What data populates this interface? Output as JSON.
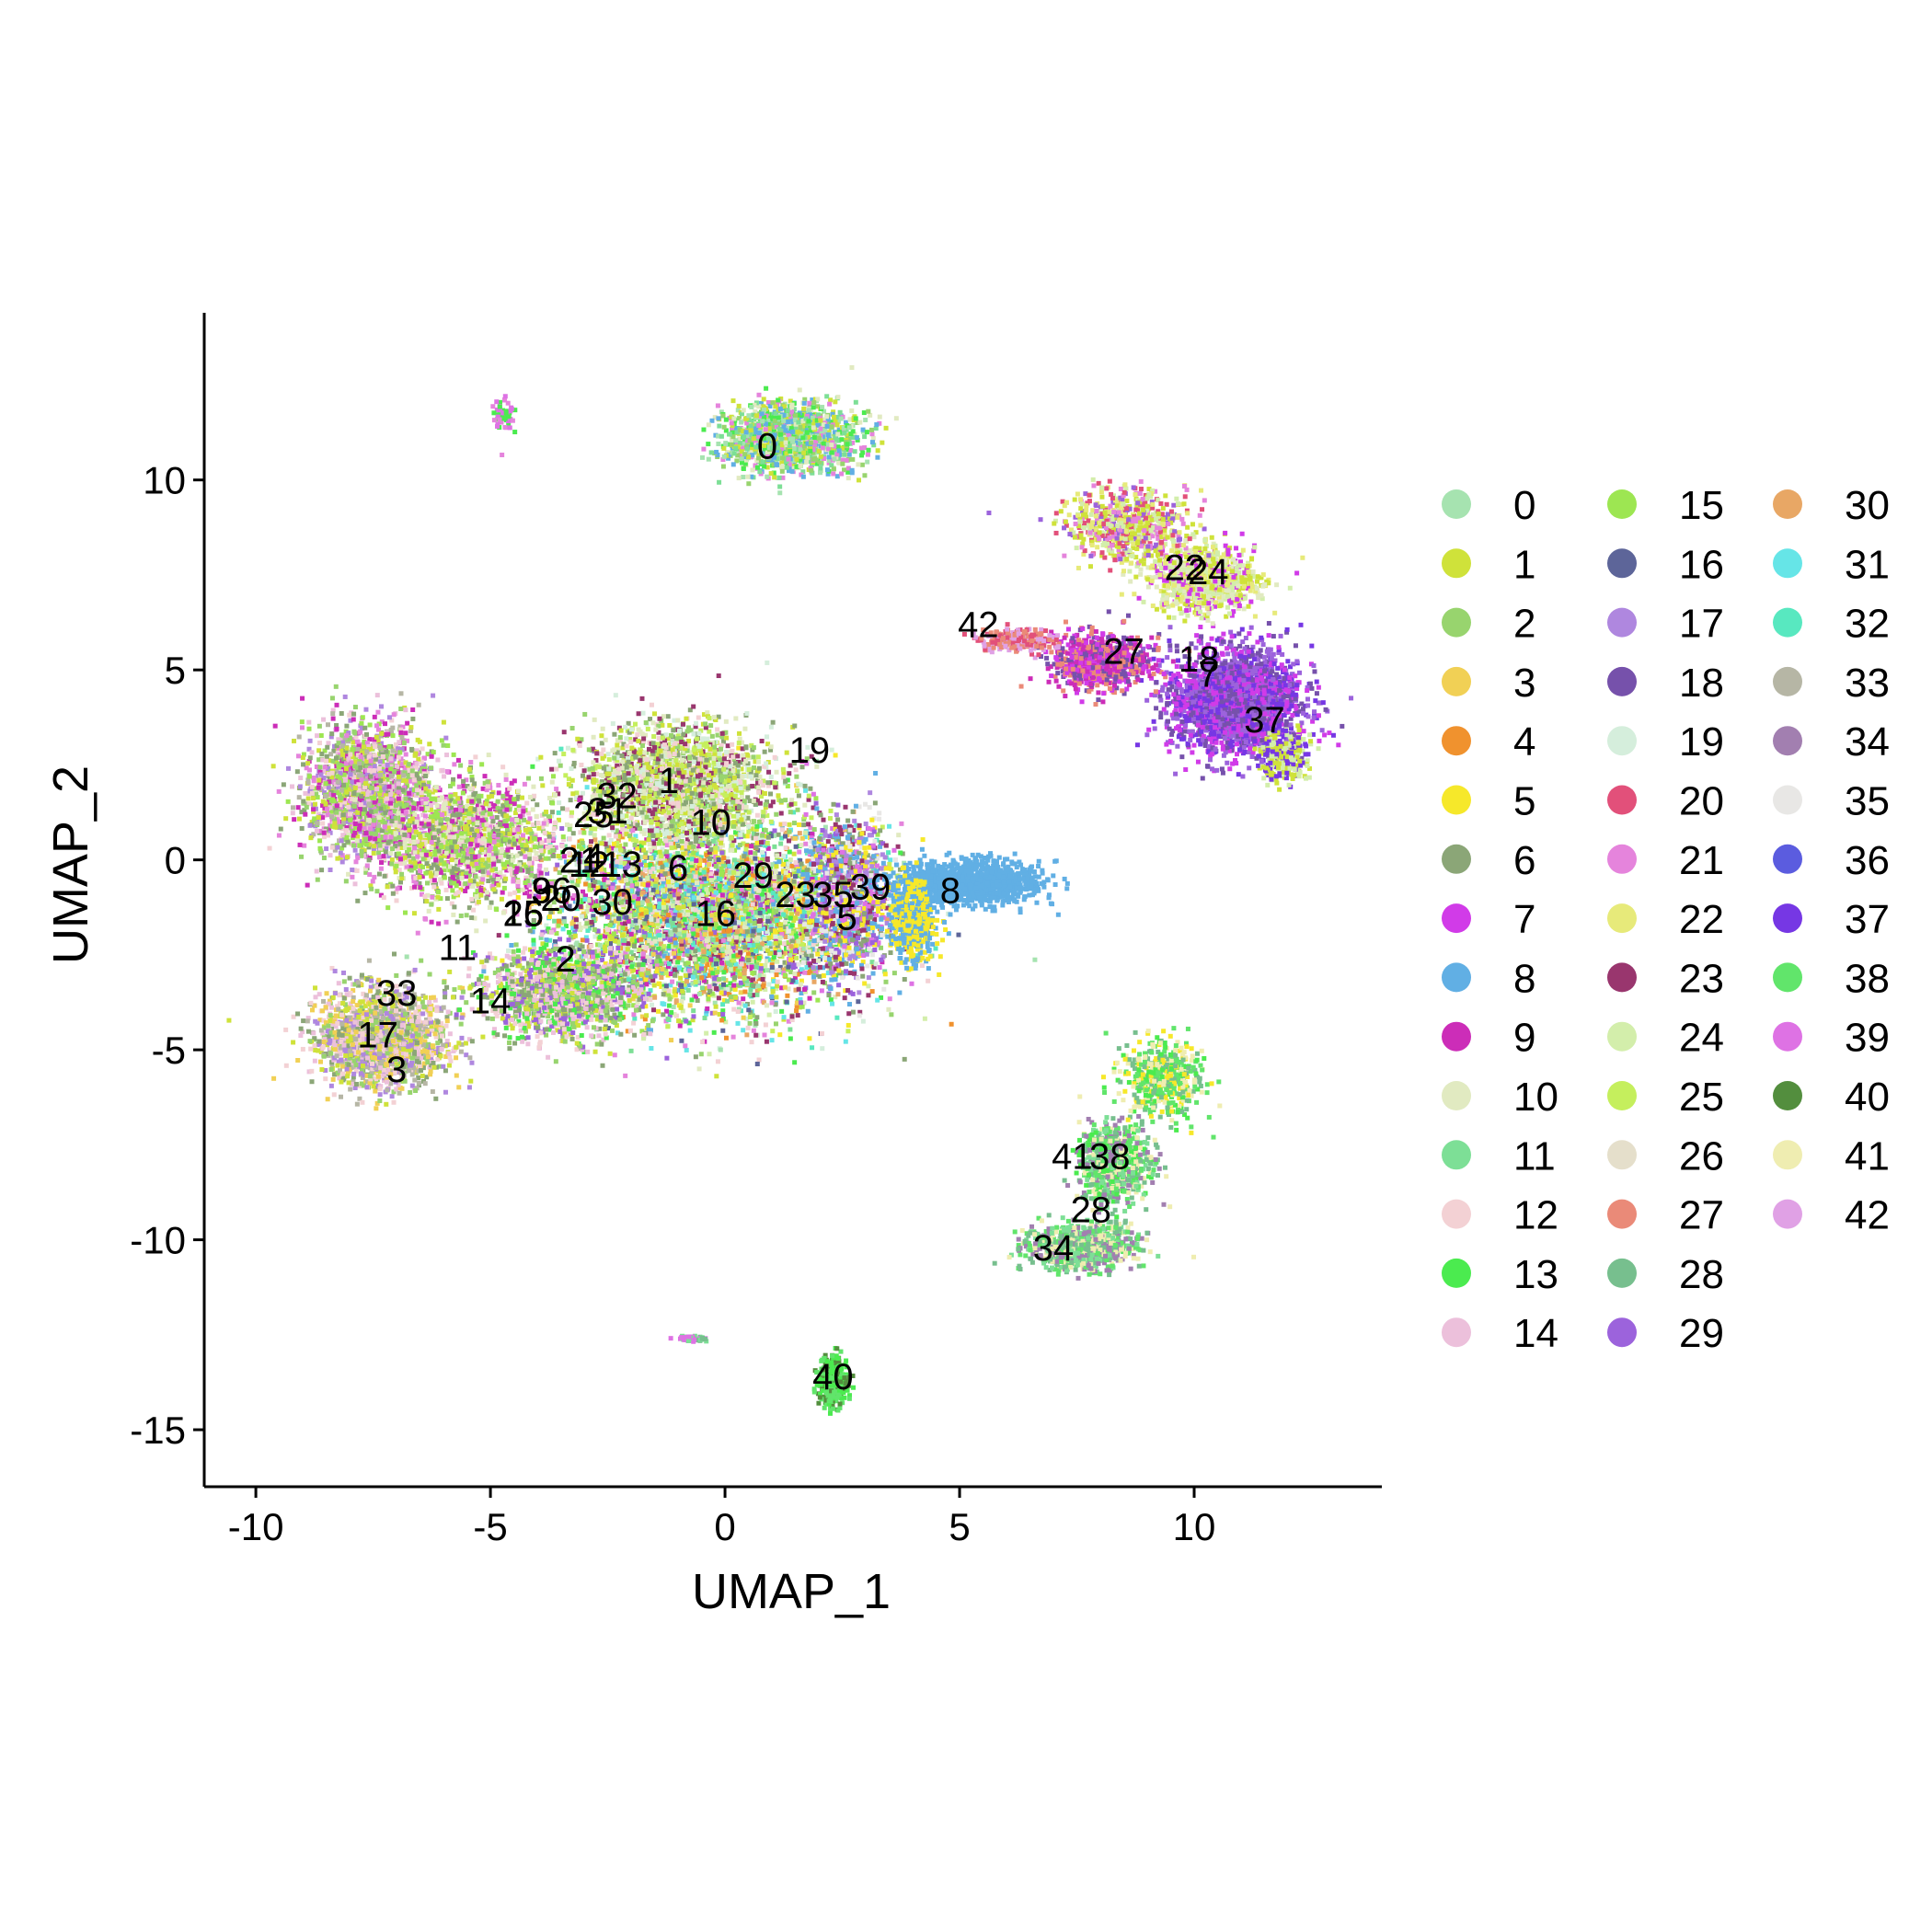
{
  "chart_data": {
    "type": "scatter",
    "xlabel": "UMAP_1",
    "ylabel": "UMAP_2",
    "xlim": [
      -11.1,
      14.0
    ],
    "ylim": [
      -16.5,
      14.4
    ],
    "xticks": [
      -10,
      -5,
      0,
      5,
      10
    ],
    "yticks": [
      10,
      5,
      0,
      -5,
      -10,
      -15
    ],
    "grid": false,
    "legend_position": "right",
    "legend_columns": 3,
    "clusters": [
      {
        "id": "0",
        "color": "#A6E3B0",
        "label_pos": [
          0.9,
          10.9
        ]
      },
      {
        "id": "1",
        "color": "#CFE23A",
        "label_pos": [
          -1.2,
          2.1
        ]
      },
      {
        "id": "2",
        "color": "#98D46E",
        "label_pos": [
          -3.4,
          -2.6
        ]
      },
      {
        "id": "3",
        "color": "#F1D055",
        "label_pos": [
          -7.0,
          -5.5
        ]
      },
      {
        "id": "4",
        "color": "#F0922E",
        "label_pos": [
          -2.8,
          0.1
        ]
      },
      {
        "id": "5",
        "color": "#F6E82A",
        "label_pos": [
          2.6,
          -1.5
        ]
      },
      {
        "id": "6",
        "color": "#8BA677",
        "label_pos": [
          -1.0,
          -0.2
        ]
      },
      {
        "id": "7",
        "color": "#D13BE8",
        "label_pos": [
          10.3,
          4.9
        ]
      },
      {
        "id": "8",
        "color": "#61AFE4",
        "label_pos": [
          4.8,
          -0.8
        ]
      },
      {
        "id": "9",
        "color": "#CC2DB8",
        "label_pos": [
          -3.9,
          -0.8
        ]
      },
      {
        "id": "10",
        "color": "#E1EAC1",
        "label_pos": [
          -0.3,
          1.0
        ]
      },
      {
        "id": "11",
        "color": "#7DDF96",
        "label_pos": [
          -5.7,
          -2.3
        ]
      },
      {
        "id": "12",
        "color": "#F3D1D4",
        "label_pos": [
          -2.9,
          -0.1
        ]
      },
      {
        "id": "13",
        "color": "#4BEB4F",
        "label_pos": [
          -2.2,
          -0.1
        ]
      },
      {
        "id": "14",
        "color": "#ECC0DB",
        "label_pos": [
          -5.0,
          -3.7
        ]
      },
      {
        "id": "15",
        "color": "#9DE652",
        "label_pos": [
          -4.3,
          -1.4
        ]
      },
      {
        "id": "16",
        "color": "#5D6599",
        "label_pos": [
          -0.2,
          -1.4
        ]
      },
      {
        "id": "17",
        "color": "#AF87DF",
        "label_pos": [
          -7.4,
          -4.6
        ]
      },
      {
        "id": "18",
        "color": "#7651AB",
        "label_pos": [
          10.1,
          5.3
        ]
      },
      {
        "id": "19",
        "color": "#D5EEDC",
        "label_pos": [
          1.8,
          2.9
        ]
      },
      {
        "id": "20",
        "color": "#E2507A",
        "label_pos": [
          -3.5,
          -1.0
        ]
      },
      {
        "id": "21",
        "color": "#E584DC",
        "label_pos": [
          -3.1,
          0.0
        ]
      },
      {
        "id": "22",
        "color": "#E7EA7A",
        "label_pos": [
          9.8,
          7.7
        ]
      },
      {
        "id": "23",
        "color": "#99366E",
        "label_pos": [
          1.5,
          -0.9
        ]
      },
      {
        "id": "24",
        "color": "#D3EEAB",
        "label_pos": [
          10.3,
          7.6
        ]
      },
      {
        "id": "25",
        "color": "#C5EF5D",
        "label_pos": [
          -2.8,
          1.2
        ]
      },
      {
        "id": "26",
        "color": "#E5DFCB",
        "label_pos": [
          -4.3,
          -1.4
        ]
      },
      {
        "id": "27",
        "color": "#EA8A78",
        "label_pos": [
          8.5,
          5.5
        ]
      },
      {
        "id": "28",
        "color": "#77BF8E",
        "label_pos": [
          7.8,
          -9.2
        ]
      },
      {
        "id": "29",
        "color": "#9C63DC",
        "label_pos": [
          0.6,
          -0.4
        ]
      },
      {
        "id": "30",
        "color": "#E8A765",
        "label_pos": [
          -2.4,
          -1.1
        ]
      },
      {
        "id": "31",
        "color": "#66E5E7",
        "label_pos": [
          -2.5,
          1.3
        ]
      },
      {
        "id": "32",
        "color": "#58E8C0",
        "label_pos": [
          -2.3,
          1.7
        ]
      },
      {
        "id": "33",
        "color": "#B6B6A5",
        "label_pos": [
          -7.0,
          -3.5
        ]
      },
      {
        "id": "34",
        "color": "#A27FB0",
        "label_pos": [
          7.0,
          -10.2
        ]
      },
      {
        "id": "35",
        "color": "#E8E7E5",
        "label_pos": [
          2.3,
          -0.9
        ]
      },
      {
        "id": "36",
        "color": "#5B5CDF",
        "label_pos": [
          -3.7,
          -0.8
        ]
      },
      {
        "id": "37",
        "color": "#7637E4",
        "label_pos": [
          11.5,
          3.7
        ]
      },
      {
        "id": "38",
        "color": "#61E56B",
        "label_pos": [
          8.2,
          -7.8
        ]
      },
      {
        "id": "39",
        "color": "#DE72E4",
        "label_pos": [
          3.1,
          -0.7
        ]
      },
      {
        "id": "40",
        "color": "#538E3E",
        "label_pos": [
          2.3,
          -13.6
        ]
      },
      {
        "id": "41",
        "color": "#EFEDB1",
        "label_pos": [
          7.4,
          -7.8
        ]
      },
      {
        "id": "42",
        "color": "#E0A1E5",
        "label_pos": [
          5.4,
          6.2
        ]
      }
    ]
  }
}
